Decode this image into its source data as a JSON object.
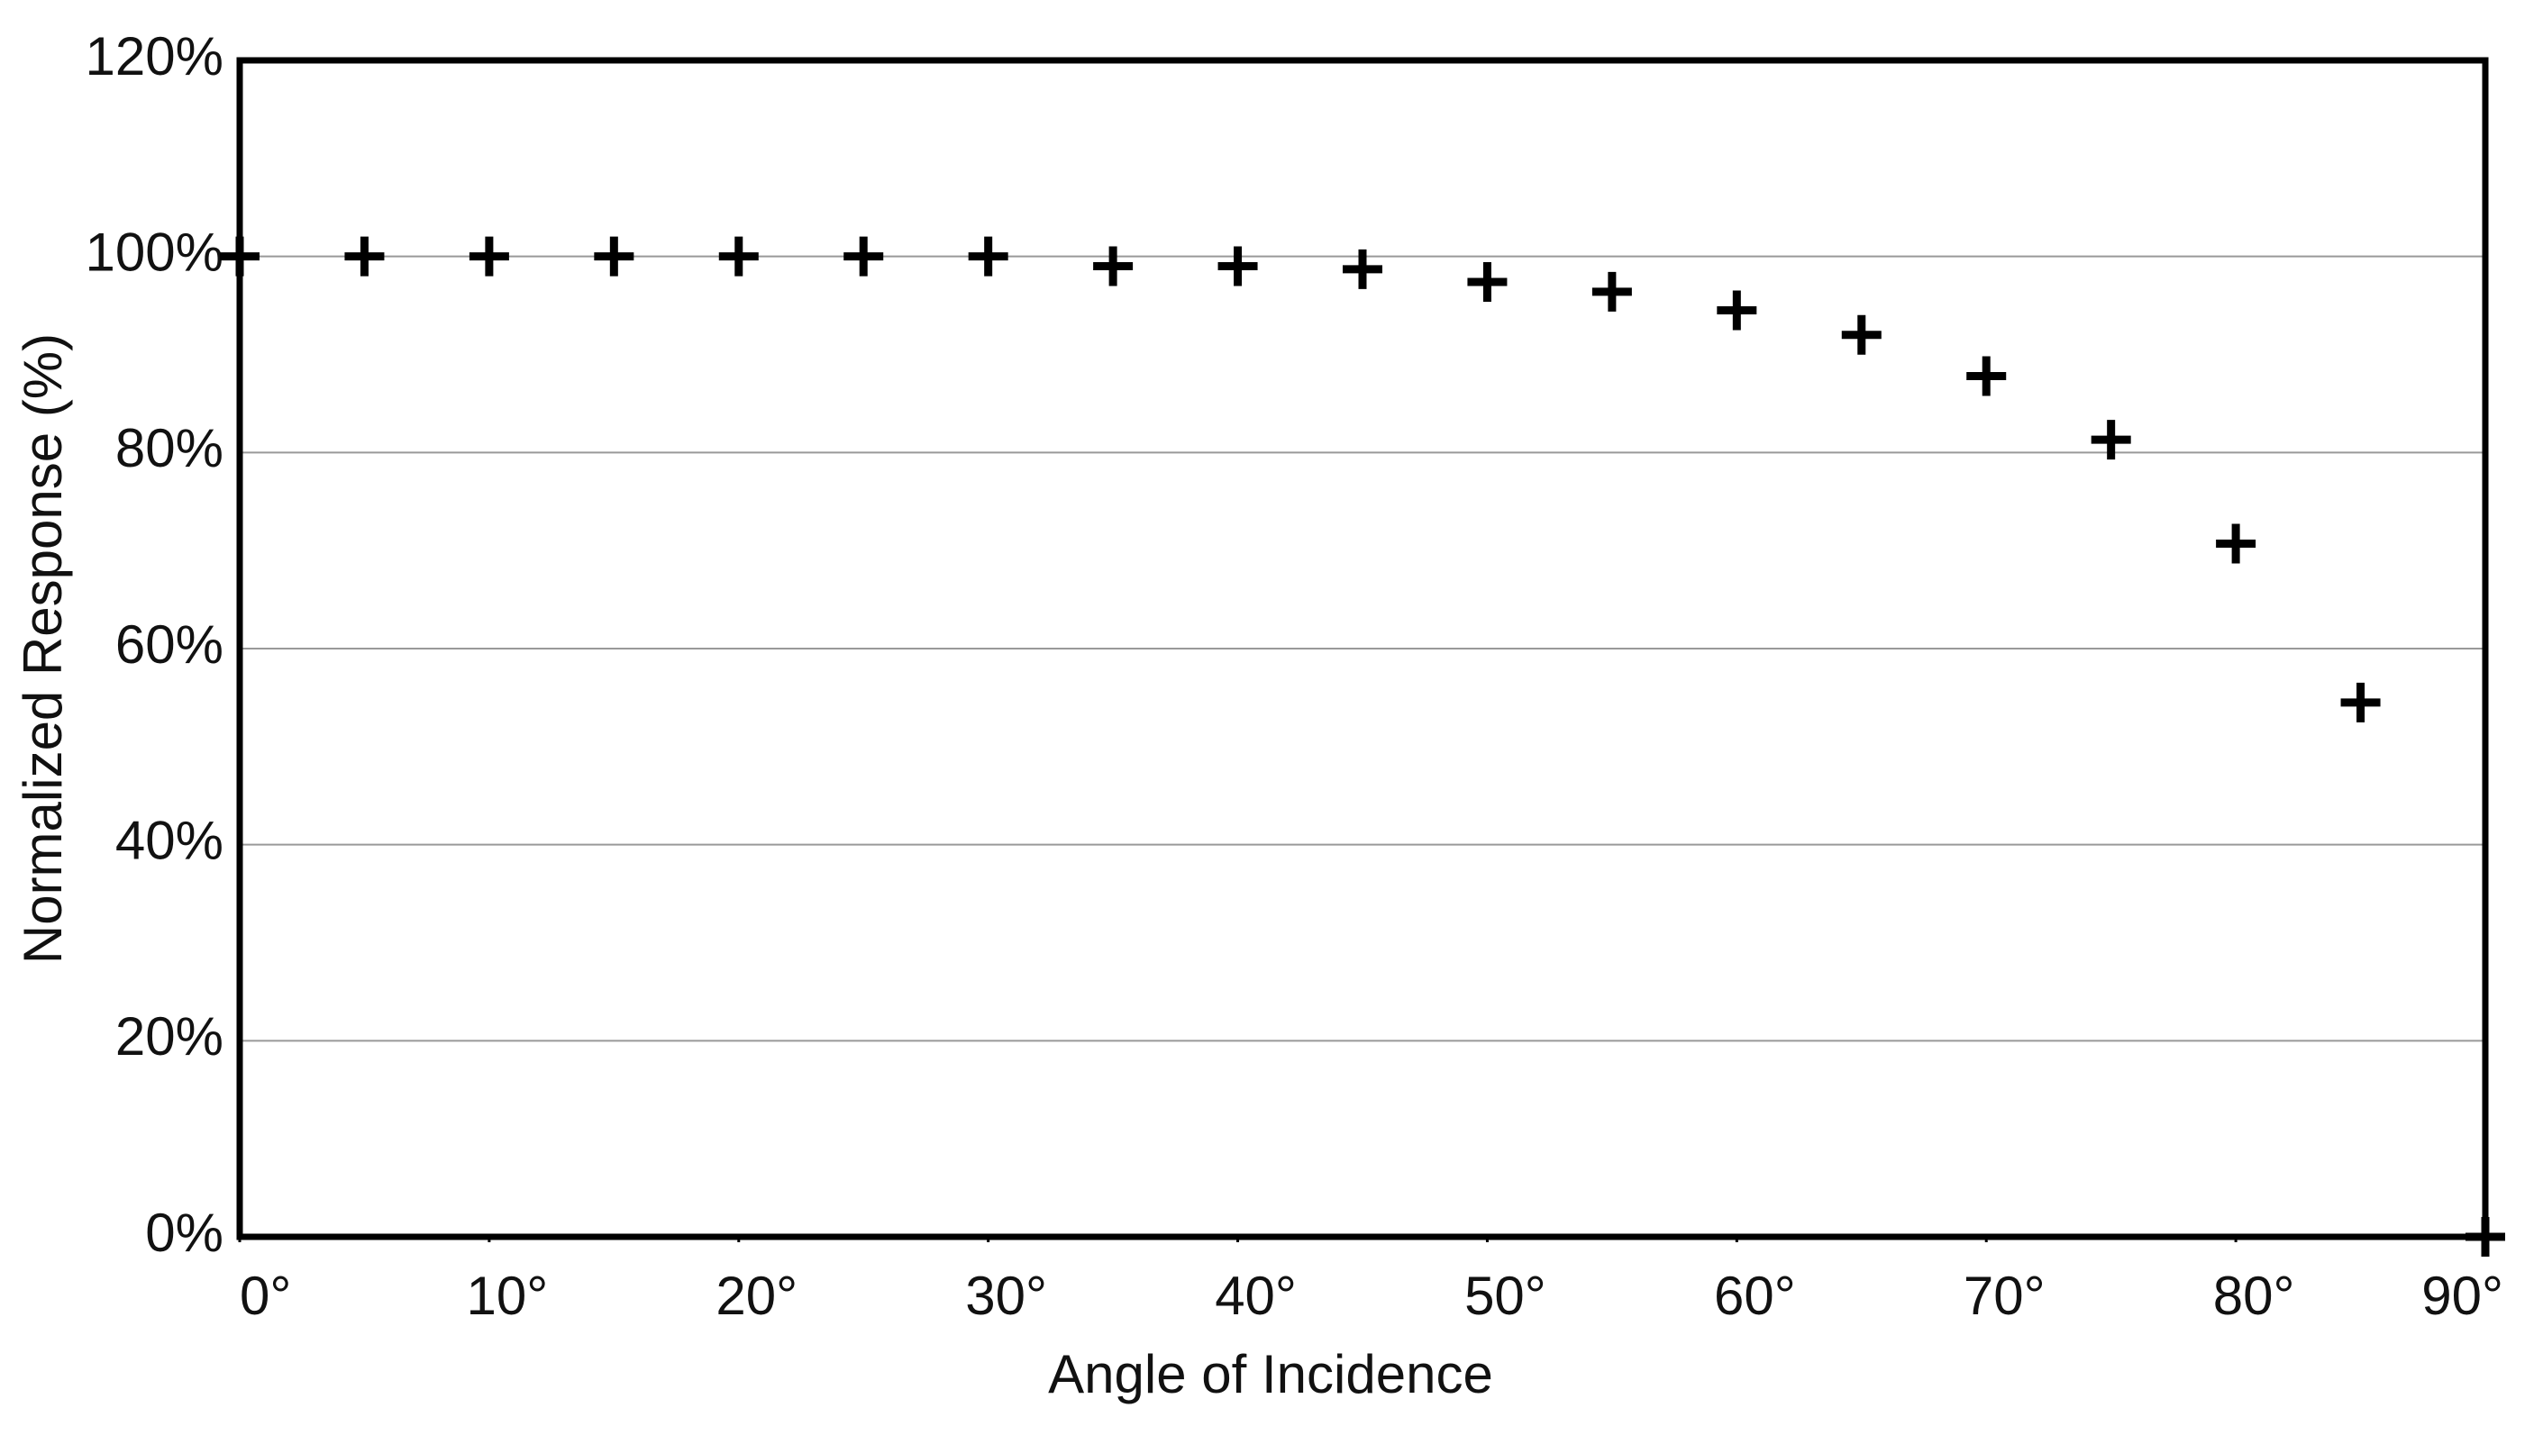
{
  "chart_data": {
    "type": "scatter",
    "x_label": "Angle of Incidence",
    "y_label": "Normalized Response (%)",
    "x": [
      0,
      5,
      10,
      15,
      20,
      25,
      30,
      35,
      40,
      45,
      50,
      55,
      60,
      65,
      70,
      75,
      80,
      85,
      90
    ],
    "values": [
      100,
      100,
      100,
      100,
      100,
      100,
      100,
      99,
      99,
      98.7,
      97.4,
      96.4,
      94.5,
      92,
      87.8,
      81.3,
      70.7,
      54.5,
      0
    ],
    "color": "#000000",
    "xlim": [
      0,
      90
    ],
    "xticks": [
      {
        "value": 0,
        "label": "0°"
      },
      {
        "value": 10,
        "label": "10°"
      },
      {
        "value": 20,
        "label": "20°"
      },
      {
        "value": 30,
        "label": "30°"
      },
      {
        "value": 40,
        "label": "40°"
      },
      {
        "value": 50,
        "label": "50°"
      },
      {
        "value": 60,
        "label": "60°"
      },
      {
        "value": 70,
        "label": "70°"
      },
      {
        "value": 80,
        "label": "80°"
      },
      {
        "value": 90,
        "label": "90°"
      }
    ],
    "ylim": [
      0,
      120
    ],
    "yticks": [
      {
        "value": 0,
        "label": "0%"
      },
      {
        "value": 20,
        "label": "20%"
      },
      {
        "value": 40,
        "label": "40%"
      },
      {
        "value": 60,
        "label": "60%"
      },
      {
        "value": 80,
        "label": "80%"
      },
      {
        "value": 100,
        "label": "100%"
      },
      {
        "value": 120,
        "label": "120%"
      }
    ],
    "grid": true
  }
}
